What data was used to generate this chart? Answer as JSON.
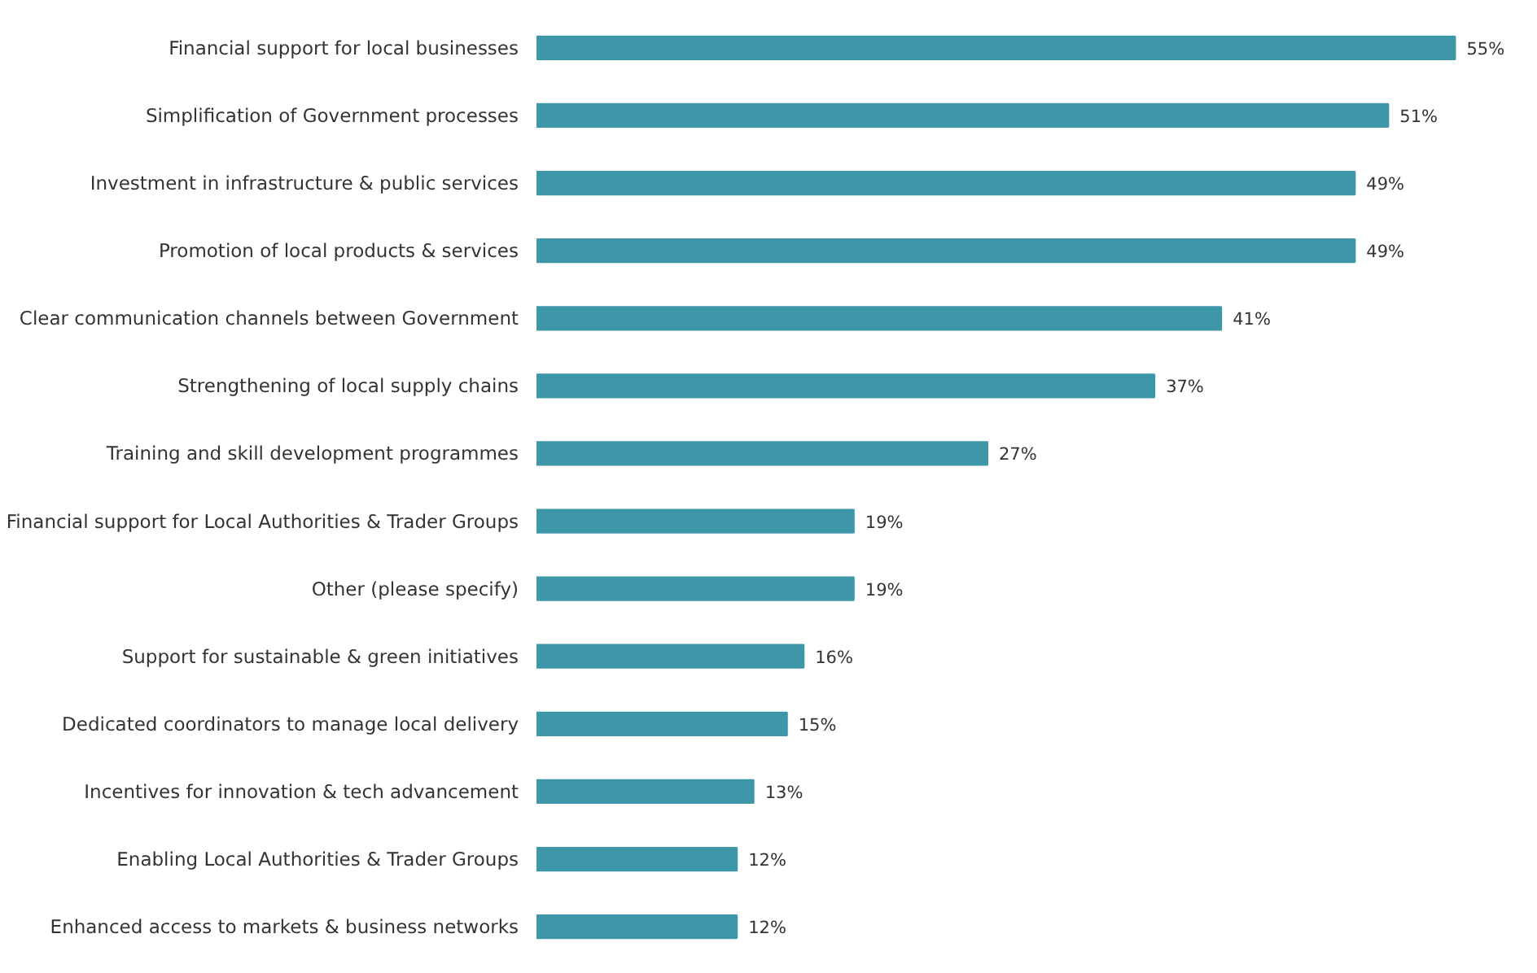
{
  "chart_data": {
    "type": "bar",
    "orientation": "horizontal",
    "categories": [
      "Financial support for local businesses",
      "Simplification of Government processes",
      "Investment in infrastructure & public services",
      "Promotion of local products & services",
      "Clear communication channels between Government",
      "Strengthening of local supply chains",
      "Training and skill development programmes",
      "Financial support for Local Authorities & Trader Groups",
      "Other (please specify)",
      "Support for sustainable & green initiatives",
      "Dedicated coordinators to manage local delivery",
      "Incentives for innovation & tech advancement",
      "Enabling Local Authorities & Trader Groups",
      "Enhanced access to markets & business networks"
    ],
    "values": [
      55,
      51,
      49,
      49,
      41,
      37,
      27,
      19,
      19,
      16,
      15,
      13,
      12,
      12
    ],
    "value_labels": [
      "55%",
      "51%",
      "49%",
      "49%",
      "41%",
      "37%",
      "27%",
      "19%",
      "19%",
      "16%",
      "15%",
      "13%",
      "12%",
      "12%"
    ],
    "color": "#3d97a8"
  }
}
